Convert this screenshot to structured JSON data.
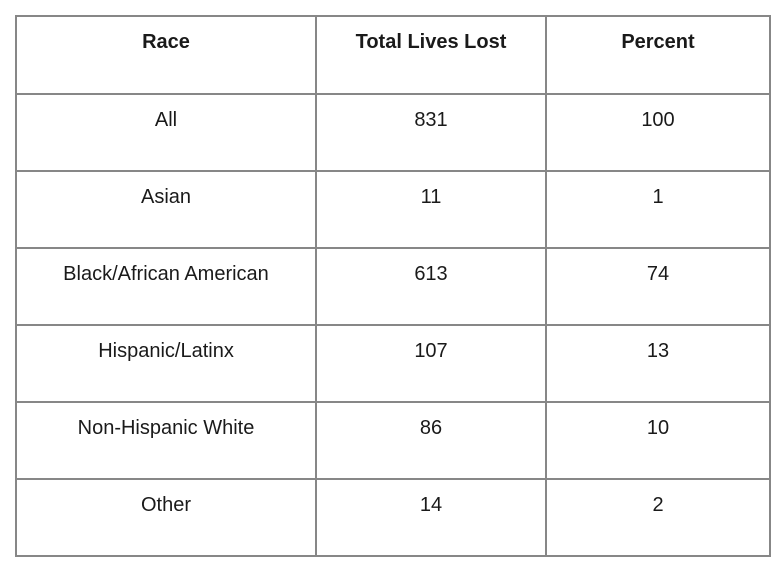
{
  "chart_data": {
    "type": "table",
    "columns": [
      "Race",
      "Total Lives Lost",
      "Percent"
    ],
    "rows": [
      [
        "All",
        "831",
        "100"
      ],
      [
        "Asian",
        "11",
        "1"
      ],
      [
        "Black/African American",
        "613",
        "74"
      ],
      [
        "Hispanic/Latinx",
        "107",
        "13"
      ],
      [
        "Non-Hispanic White",
        "86",
        "10"
      ],
      [
        "Other",
        "14",
        "2"
      ]
    ],
    "layout": {
      "header_bold": true,
      "cell_text_align": "center",
      "cell_vertical_align": "top"
    }
  },
  "colors": {
    "border": "#878787",
    "text": "#1a1a1a",
    "background": "#ffffff"
  }
}
